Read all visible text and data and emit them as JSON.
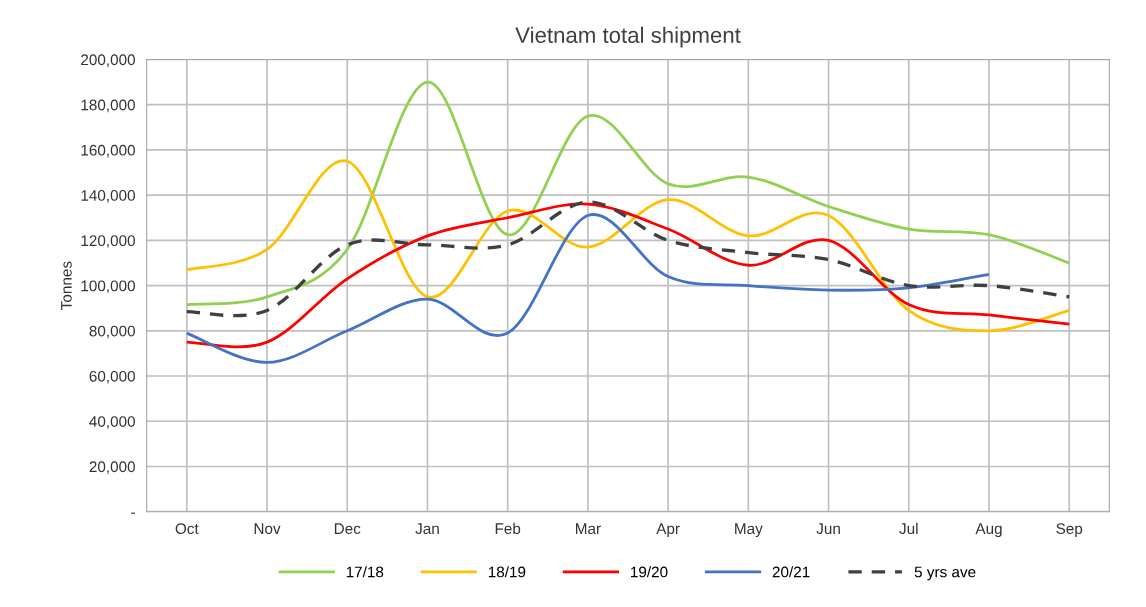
{
  "chart_data": {
    "type": "line",
    "title": "Vietnam total shipment",
    "ylabel": "Tonnes",
    "categories": [
      "Oct",
      "Nov",
      "Dec",
      "Jan",
      "Feb",
      "Mar",
      "Apr",
      "May",
      "Jun",
      "Jul",
      "Aug",
      "Sep"
    ],
    "series": [
      {
        "name": "17/18",
        "color": "#92d050",
        "values": [
          91600,
          95000,
          116000,
          190000,
          122500,
          175000,
          145000,
          148000,
          135000,
          125000,
          122500,
          110000
        ]
      },
      {
        "name": "18/19",
        "color": "#ffc000",
        "values": [
          107000,
          116000,
          155000,
          95000,
          133000,
          117000,
          138000,
          122000,
          131000,
          89000,
          80000,
          89000
        ]
      },
      {
        "name": "19/20",
        "color": "#ff0000",
        "values": [
          75000,
          75000,
          103000,
          122000,
          130000,
          136000,
          125000,
          109000,
          120000,
          91600,
          87000,
          83000
        ]
      },
      {
        "name": "20/21",
        "color": "#4472c4",
        "values": [
          79000,
          66000,
          80000,
          94000,
          79000,
          131000,
          104000,
          100000,
          98000,
          99000,
          105000,
          null
        ]
      },
      {
        "name": "5 yrs ave",
        "color": "#404040",
        "line_style": "dashed",
        "values": [
          88500,
          89000,
          118000,
          118000,
          118000,
          137000,
          120000,
          114600,
          111500,
          100000,
          100000,
          95000
        ]
      }
    ],
    "ylim": [
      0,
      200000
    ],
    "yticks": [
      {
        "value": 0,
        "label": "-"
      },
      {
        "value": 20000,
        "label": "20,000"
      },
      {
        "value": 40000,
        "label": "40,000"
      },
      {
        "value": 60000,
        "label": "60,000"
      },
      {
        "value": 80000,
        "label": "80,000"
      },
      {
        "value": 100000,
        "label": "100,000"
      },
      {
        "value": 120000,
        "label": "120,000"
      },
      {
        "value": 140000,
        "label": "140,000"
      },
      {
        "value": 160000,
        "label": "160,000"
      },
      {
        "value": 180000,
        "label": "180,000"
      },
      {
        "value": 200000,
        "label": "200,000"
      }
    ],
    "grid": true,
    "legend": "bottom",
    "line_style": "solid"
  }
}
